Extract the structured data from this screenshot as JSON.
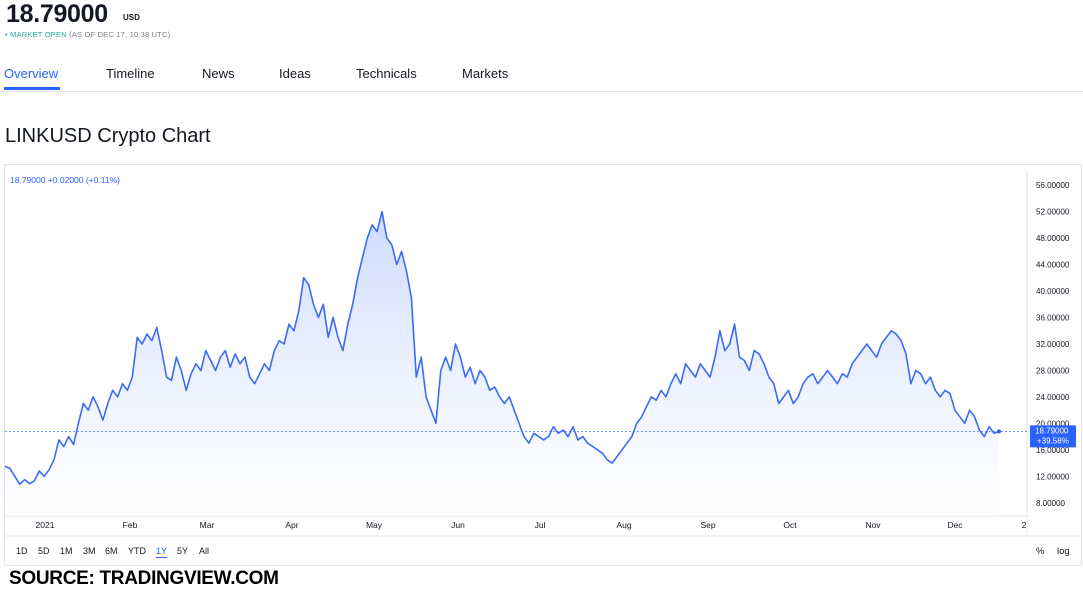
{
  "header": {
    "price": "18.79000",
    "currency": "USD",
    "status_dot": "•",
    "status_open": "MARKET OPEN",
    "status_time": "(AS OF DEC 17, 10:38 UTC)"
  },
  "tabs": [
    {
      "label": "Overview",
      "active": true
    },
    {
      "label": "Timeline",
      "active": false
    },
    {
      "label": "News",
      "active": false
    },
    {
      "label": "Ideas",
      "active": false
    },
    {
      "label": "Technicals",
      "active": false
    },
    {
      "label": "Markets",
      "active": false
    }
  ],
  "title": "LINKUSD Crypto Chart",
  "legend": "18.79000  +0.02000 (+0.11%)",
  "ranges": [
    {
      "label": "1D",
      "active": false
    },
    {
      "label": "5D",
      "active": false
    },
    {
      "label": "1M",
      "active": false
    },
    {
      "label": "3M",
      "active": false
    },
    {
      "label": "6M",
      "active": false
    },
    {
      "label": "YTD",
      "active": false
    },
    {
      "label": "1Y",
      "active": true
    },
    {
      "label": "5Y",
      "active": false
    },
    {
      "label": "All",
      "active": false
    }
  ],
  "options": {
    "percent": "%",
    "log": "log"
  },
  "source": "SOURCE: TRADINGVIEW.COM",
  "colors": {
    "accent": "#2962ff",
    "line": "#3c6cf0",
    "fill": "#dbe4ff",
    "market_open": "#26a69a"
  },
  "chart_data": {
    "type": "area",
    "symbol": "LINKUSD",
    "ylim": [
      6,
      58
    ],
    "yticks": [
      "56.00000",
      "52.00000",
      "48.00000",
      "44.00000",
      "40.00000",
      "36.00000",
      "32.00000",
      "28.00000",
      "24.00000",
      "20.00000",
      "16.00000",
      "12.00000",
      "8.00000"
    ],
    "xticks": [
      "2021",
      "Feb",
      "Mar",
      "Apr",
      "May",
      "Jun",
      "Jul",
      "Aug",
      "Sep",
      "Oct",
      "Nov",
      "Dec",
      "2"
    ],
    "last_price_label": "18.79000",
    "last_change_label": "+39.58%",
    "last_value": 18.79,
    "series": [
      {
        "values": [
          13.5,
          13.2,
          12.0,
          10.8,
          11.5,
          10.9,
          11.3,
          12.8,
          12.0,
          13.0,
          14.5,
          17.5,
          16.5,
          18.0,
          16.8,
          20.0,
          23.0,
          22.0,
          24.0,
          22.5,
          20.5,
          23.0,
          25.0,
          24.0,
          26.0,
          25.0,
          27.0,
          33.0,
          32.0,
          33.5,
          32.5,
          34.5,
          31.0,
          27.0,
          26.5,
          30.0,
          28.0,
          25.0,
          27.5,
          29.0,
          28.0,
          31.0,
          29.5,
          28.0,
          30.0,
          31.0,
          28.5,
          30.5,
          29.0,
          30.0,
          27.0,
          26.0,
          27.5,
          29.0,
          28.0,
          31.0,
          32.5,
          32.0,
          35.0,
          34.0,
          37.0,
          42.0,
          41.0,
          38.0,
          36.0,
          38.0,
          33.0,
          36.0,
          33.0,
          31.0,
          35.0,
          38.0,
          42.0,
          45.0,
          48.0,
          50.0,
          49.0,
          52.0,
          48.0,
          47.0,
          44.0,
          46.0,
          43.0,
          39.0,
          27.0,
          30.0,
          24.0,
          22.0,
          20.0,
          28.0,
          30.0,
          28.0,
          32.0,
          30.0,
          27.0,
          28.5,
          26.0,
          28.0,
          27.0,
          25.0,
          25.5,
          24.0,
          23.0,
          24.0,
          22.0,
          20.0,
          18.0,
          17.0,
          18.5,
          18.0,
          17.5,
          18.0,
          19.5,
          18.5,
          19.0,
          18.0,
          19.5,
          17.5,
          18.0,
          17.0,
          16.5,
          16.0,
          15.5,
          14.5,
          14.0,
          15.0,
          16.0,
          17.0,
          18.0,
          20.0,
          21.0,
          22.5,
          24.0,
          23.5,
          25.0,
          24.0,
          26.0,
          27.5,
          26.0,
          29.0,
          28.0,
          27.0,
          29.0,
          28.0,
          27.0,
          30.0,
          34.0,
          31.0,
          32.0,
          35.0,
          30.0,
          29.5,
          28.0,
          31.0,
          30.5,
          29.0,
          27.0,
          26.0,
          23.0,
          24.0,
          25.0,
          23.0,
          24.0,
          26.0,
          27.0,
          27.5,
          26.0,
          27.0,
          28.0,
          27.0,
          26.0,
          27.5,
          27.0,
          29.0,
          30.0,
          31.0,
          32.0,
          31.0,
          30.0,
          32.0,
          33.0,
          34.0,
          33.5,
          32.5,
          30.5,
          26.0,
          28.0,
          27.5,
          26.0,
          27.0,
          25.0,
          24.0,
          25.0,
          24.5,
          22.0,
          21.0,
          20.0,
          22.0,
          21.0,
          19.0,
          18.0,
          19.5,
          18.5,
          18.79
        ]
      }
    ]
  }
}
